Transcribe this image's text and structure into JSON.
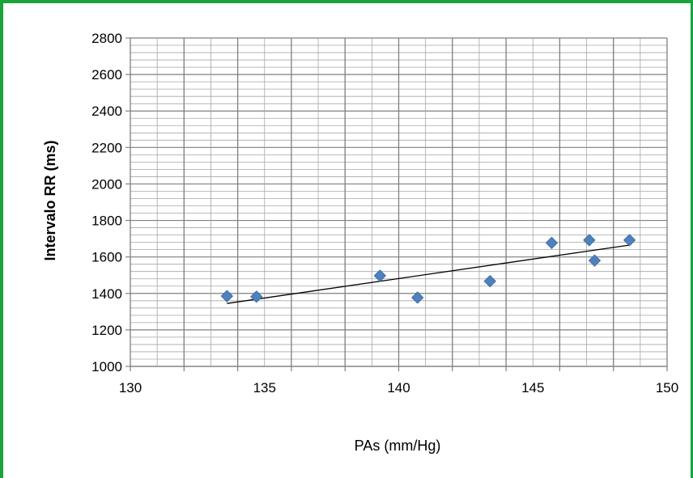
{
  "colors": {
    "frame": "#1aa43a",
    "marker": "#4f81bd",
    "trendline": "#000000",
    "grid_minor": "#a6a6a6",
    "grid_major": "#7f7f7f"
  },
  "chart_data": {
    "type": "scatter",
    "title": "",
    "xlabel": "PAs (mm/Hg)",
    "ylabel": "Intervalo  RR (ms)",
    "xlim": [
      130,
      150
    ],
    "ylim": [
      1000,
      2800
    ],
    "x_ticks": [
      130,
      135,
      140,
      145,
      150
    ],
    "y_ticks": [
      1000,
      1200,
      1400,
      1600,
      1800,
      2000,
      2200,
      2400,
      2600,
      2800
    ],
    "x_major_gridlines": [
      132,
      134,
      136,
      138,
      140,
      142,
      144,
      146,
      148,
      150
    ],
    "y_minor_step": 40,
    "grid": true,
    "legend": "none",
    "marker": "diamond",
    "points": [
      {
        "x": 133.6,
        "y": 1385
      },
      {
        "x": 134.7,
        "y": 1382
      },
      {
        "x": 139.3,
        "y": 1497
      },
      {
        "x": 140.7,
        "y": 1377
      },
      {
        "x": 143.4,
        "y": 1467
      },
      {
        "x": 145.7,
        "y": 1677
      },
      {
        "x": 147.1,
        "y": 1692
      },
      {
        "x": 147.3,
        "y": 1580
      },
      {
        "x": 148.6,
        "y": 1692
      }
    ],
    "trendline": {
      "type": "linear",
      "x": [
        133.6,
        148.6
      ],
      "y": [
        1345,
        1665
      ]
    }
  }
}
